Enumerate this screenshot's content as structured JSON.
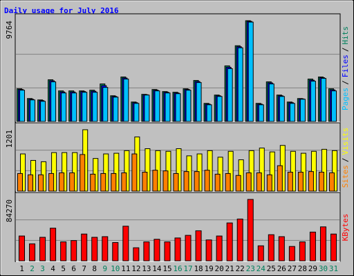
{
  "chart_data": [
    {
      "type": "bar",
      "title": "Daily usage for July 2016",
      "ylim": [
        0,
        9764
      ],
      "yticks": [
        9764
      ],
      "legend_separator": "/",
      "series": [
        {
          "name": "Hits",
          "color": "#00805c",
          "values": [
            3165,
            2222,
            2087,
            4040,
            2963,
            2963,
            2963,
            3030,
            3636,
            2491,
            4310,
            1885,
            2626,
            3098,
            2896,
            2828,
            3165,
            3973,
            1751,
            2559,
            5387,
            7340,
            9764,
            1751,
            3838,
            2559,
            1885,
            2222,
            4108,
            4310,
            3165
          ]
        },
        {
          "name": "Files",
          "color": "#0000ff",
          "values": [
            3100,
            2150,
            2020,
            3940,
            2860,
            2860,
            2900,
            2930,
            3470,
            2420,
            4210,
            1820,
            2590,
            3030,
            2830,
            2760,
            3100,
            3870,
            1680,
            2490,
            5250,
            7240,
            9700,
            1680,
            3740,
            2490,
            1820,
            2190,
            4000,
            4240,
            3060
          ]
        },
        {
          "name": "Pages",
          "color": "#00c0ff",
          "values": [
            3030,
            2087,
            1953,
            3838,
            2761,
            2761,
            2828,
            2828,
            3300,
            2357,
            4108,
            1751,
            2559,
            2963,
            2761,
            2693,
            3030,
            3771,
            1616,
            2424,
            5118,
            7139,
            9629,
            1616,
            3636,
            2424,
            1751,
            2155,
            3905,
            4175,
            2963
          ]
        }
      ]
    },
    {
      "type": "bar",
      "ylim": [
        0,
        1201
      ],
      "yticks": [
        1201
      ],
      "legend_separator": "/",
      "series": [
        {
          "name": "Visits",
          "color": "#ffff00",
          "values": [
            728,
            601,
            575,
            754,
            754,
            754,
            1201,
            639,
            728,
            741,
            792,
            1060,
            830,
            792,
            779,
            830,
            690,
            728,
            792,
            664,
            779,
            613,
            792,
            843,
            767,
            894,
            779,
            741,
            779,
            818,
            792
          ]
        },
        {
          "name": "Sites",
          "color": "#ff8000",
          "values": [
            345,
            319,
            319,
            345,
            358,
            358,
            716,
            332,
            345,
            345,
            358,
            728,
            371,
            409,
            396,
            345,
            383,
            383,
            409,
            332,
            345,
            307,
            358,
            358,
            319,
            498,
            371,
            371,
            383,
            371,
            358
          ]
        }
      ]
    },
    {
      "type": "bar",
      "ylim": [
        0,
        84270
      ],
      "yticks": [
        84270
      ],
      "categories": [
        "1",
        "2",
        "3",
        "4",
        "5",
        "6",
        "7",
        "8",
        "9",
        "10",
        "11",
        "12",
        "13",
        "14",
        "15",
        "16",
        "17",
        "18",
        "19",
        "20",
        "21",
        "22",
        "23",
        "24",
        "25",
        "26",
        "27",
        "28",
        "29",
        "30",
        "31"
      ],
      "category_colors": [
        "#000000",
        "#00805c",
        "#00805c",
        "#000000",
        "#000000",
        "#000000",
        "#000000",
        "#000000",
        "#00805c",
        "#00805c",
        "#000000",
        "#000000",
        "#000000",
        "#000000",
        "#000000",
        "#00805c",
        "#00805c",
        "#000000",
        "#000000",
        "#000000",
        "#000000",
        "#000000",
        "#00805c",
        "#00805c",
        "#000000",
        "#000000",
        "#000000",
        "#000000",
        "#000000",
        "#00805c",
        "#00805c"
      ],
      "series": [
        {
          "name": "KBytes",
          "color": "#ff0000",
          "values": [
            34067,
            23309,
            32274,
            44824,
            25998,
            27791,
            36756,
            32274,
            33170,
            25102,
            47514,
            17930,
            25998,
            29584,
            25998,
            31377,
            34963,
            41238,
            28687,
            34067,
            51996,
            57375,
            84270,
            20619,
            35859,
            33170,
            19723,
            25998,
            39445,
            46617,
            36756
          ]
        }
      ]
    }
  ]
}
